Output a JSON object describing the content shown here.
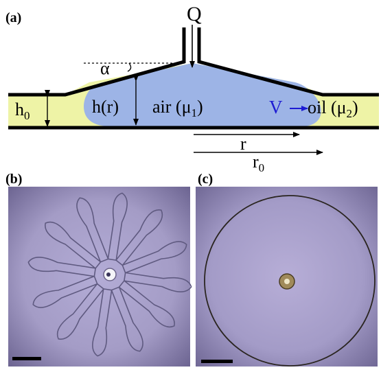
{
  "panels": {
    "a": "(a)",
    "b": "(b)",
    "c": "(c)"
  },
  "schematic": {
    "flow_rate": "Q",
    "angle": "α",
    "h0_base": "h",
    "h0_sub": "0",
    "hr": "h(r)",
    "air_text": "air (μ",
    "air_sub": "1",
    "air_close": ")",
    "velocity": "V",
    "oil_text": "oil (μ",
    "oil_sub": "2",
    "oil_close": ")",
    "radius": "r",
    "r0_base": "r",
    "r0_sub": "0"
  },
  "colors": {
    "air_fill": "#9db4e6",
    "oil_fill": "#eef3a6",
    "velocity_arrow": "#1d1bd3",
    "photo_bg": "#a9a0c9"
  }
}
